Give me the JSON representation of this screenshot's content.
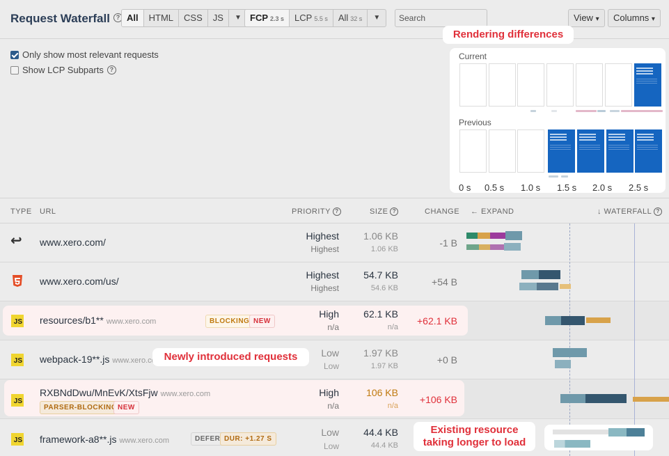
{
  "header": {
    "title": "Request Waterfall",
    "filters": [
      "All",
      "HTML",
      "CSS",
      "JS"
    ],
    "timings": [
      {
        "label": "FCP",
        "value": "2.3 s"
      },
      {
        "label": "LCP",
        "value": "5.5 s"
      },
      {
        "label": "All",
        "value": "32 s"
      }
    ],
    "search_placeholder": "Search",
    "view_label": "View",
    "columns_label": "Columns"
  },
  "options": {
    "relevant": "Only show most relevant requests",
    "lcp_subparts": "Show LCP Subparts"
  },
  "filmstrip": {
    "current_label": "Current",
    "previous_label": "Previous",
    "ticks": [
      "0 s",
      "0.5 s",
      "1.0 s",
      "1.5 s",
      "2.0 s",
      "2.5 s"
    ]
  },
  "callouts": {
    "rendering": "Rendering differences",
    "new_requests": "Newly introduced requests",
    "existing_line1": "Existing resource",
    "existing_line2": "taking longer to load"
  },
  "table": {
    "columns": {
      "type": "TYPE",
      "url": "URL",
      "priority": "PRIORITY",
      "size": "SIZE",
      "change": "CHANGE",
      "expand": "← EXPAND",
      "waterfall": "↓ WATERFALL"
    },
    "rows": [
      {
        "type": "redirect-icon",
        "url": "www.xero.com/",
        "host": "",
        "badges": [],
        "priority": "Highest",
        "priority_prev": "Highest",
        "size": "1.06 KB",
        "size_prev": "1.06 KB",
        "change": "-1 B"
      },
      {
        "type": "html-icon",
        "url": "www.xero.com/us/",
        "host": "",
        "badges": [],
        "priority": "Highest",
        "priority_prev": "Highest",
        "size": "54.7 KB",
        "size_prev": "54.6 KB",
        "change": "+54 B"
      },
      {
        "type": "js-icon",
        "url": "resources/b1**",
        "host": "www.xero.com",
        "badges": [
          "BLOCKING",
          "NEW"
        ],
        "priority": "High",
        "priority_prev": "n/a",
        "size": "62.1 KB",
        "size_prev": "n/a",
        "change": "+62.1 KB"
      },
      {
        "type": "js-icon",
        "url": "webpack-19**.js",
        "host": "www.xero.com",
        "badges": [],
        "priority": "Low",
        "priority_prev": "Low",
        "size": "1.97 KB",
        "size_prev": "1.97 KB",
        "change": "+0 B"
      },
      {
        "type": "js-icon",
        "url": "RXBNdDwu/MnEvK/XtsFjw",
        "host": "www.xero.com",
        "badges": [
          "PARSER-BLOCKING",
          "NEW"
        ],
        "priority": "High",
        "priority_prev": "n/a",
        "size": "106 KB",
        "size_prev": "n/a",
        "change": "+106 KB"
      },
      {
        "type": "js-icon",
        "url": "framework-a8**.js",
        "host": "www.xero.com",
        "badges": [
          "DEFER",
          "DUR: +1.27 S"
        ],
        "priority": "Low",
        "priority_prev": "Low",
        "size": "44.4 KB",
        "size_prev": "44.4 KB",
        "change": ""
      }
    ]
  },
  "colors": {
    "accent": "#e0303a",
    "title": "#2c3e57",
    "bar_dark": "#34566e",
    "bar_light": "#6f99aa",
    "bar_orange": "#d8a24a"
  }
}
